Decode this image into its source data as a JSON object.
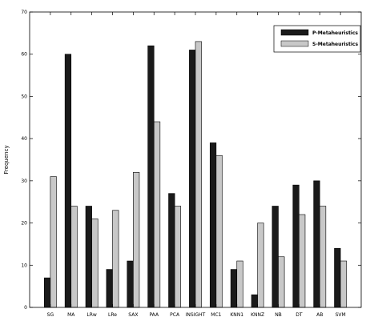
{
  "chart_data": {
    "type": "bar",
    "title": "",
    "xlabel": "",
    "ylabel": "Frequency",
    "ylim": [
      0,
      70
    ],
    "yticks": [
      0,
      10,
      20,
      30,
      40,
      50,
      60,
      70
    ],
    "grid": false,
    "legend_position": "top-right",
    "categories": [
      "SG",
      "MA",
      "LRw",
      "LRe",
      "SAX",
      "PAA",
      "PCA",
      "INSIGHT",
      "MC1",
      "KNN1",
      "KNNZ",
      "NB",
      "DT",
      "AB",
      "SVM"
    ],
    "series": [
      {
        "name": "P-Metaheuristics",
        "color": "#1a1a1a",
        "values": [
          7,
          60,
          24,
          9,
          11,
          62,
          27,
          61,
          39,
          9,
          3,
          24,
          29,
          30,
          14
        ]
      },
      {
        "name": "S-Metaheuristics",
        "color": "#c8c8c8",
        "values": [
          31,
          24,
          21,
          23,
          32,
          44,
          24,
          63,
          36,
          11,
          20,
          12,
          22,
          24,
          11
        ]
      }
    ]
  }
}
